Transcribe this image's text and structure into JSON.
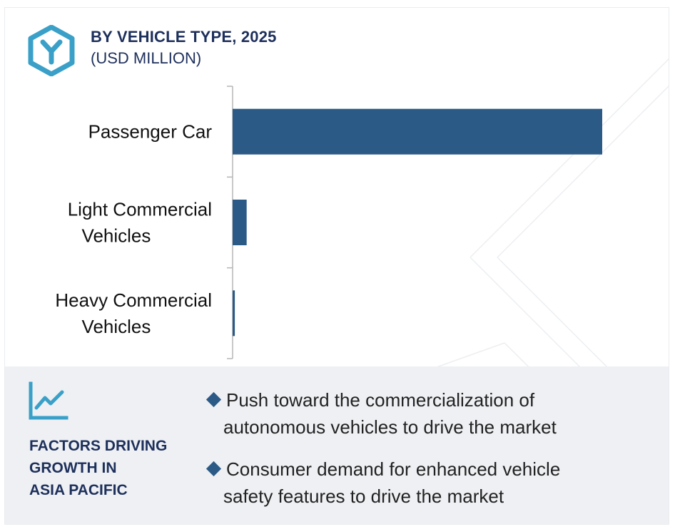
{
  "header": {
    "title": "BY VEHICLE TYPE, 2025",
    "subtitle": "(USD MILLION)",
    "logo_icon": "y-hexagon-logo-icon"
  },
  "chart_data": {
    "type": "bar",
    "orientation": "horizontal",
    "categories": [
      [
        "Passenger Car"
      ],
      [
        "Light Commercial",
        "Vehicles"
      ],
      [
        "Heavy Commercial",
        "Vehicles"
      ]
    ],
    "values": [
      100,
      3.8,
      0.6
    ],
    "xlim": [
      0,
      100
    ],
    "bar_color": "#2c5a87",
    "grid": false
  },
  "factors": {
    "icon": "line-chart-growth-icon",
    "heading_lines": [
      "FACTORS DRIVING",
      "GROWTH IN",
      "ASIA PACIFIC"
    ],
    "items": [
      {
        "lines": [
          "Push toward the commercialization of",
          "autonomous vehicles to drive the market"
        ]
      },
      {
        "lines": [
          "Consumer demand for enhanced vehicle",
          "safety features to drive the market"
        ]
      }
    ],
    "bullet_color": "#2c5a87"
  },
  "colors": {
    "heading": "#1d2f5b",
    "accent": "#3aa0c8",
    "bar": "#2c5a87",
    "panel_bg": "#eef0f3"
  }
}
